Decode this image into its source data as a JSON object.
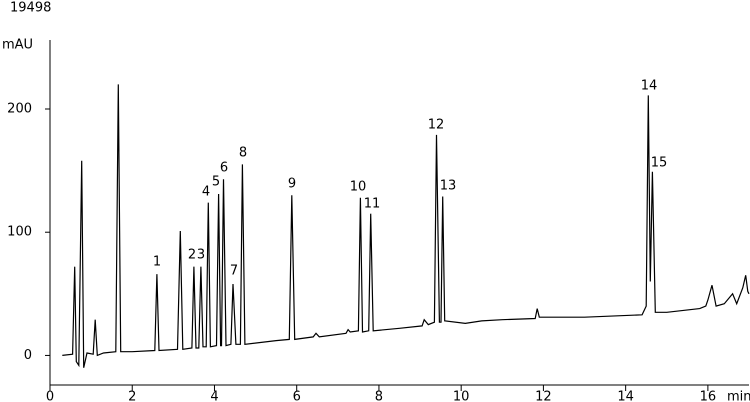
{
  "chart_data": {
    "type": "line",
    "id_label": "19498",
    "y_label": "mAU",
    "x_label": "min",
    "x": [
      0.3,
      0.55,
      0.6,
      0.64,
      0.7,
      0.77,
      0.82,
      0.9,
      1.05,
      1.1,
      1.15,
      1.3,
      1.6,
      1.66,
      1.72,
      2.0,
      2.55,
      2.6,
      2.65,
      3.1,
      3.17,
      3.23,
      3.45,
      3.5,
      3.55,
      3.62,
      3.67,
      3.72,
      3.8,
      3.85,
      3.9,
      4.05,
      4.1,
      4.15,
      4.17,
      4.22,
      4.28,
      4.4,
      4.45,
      4.52,
      4.63,
      4.68,
      4.74,
      5.5,
      5.82,
      5.88,
      5.95,
      6.4,
      6.47,
      6.55,
      7.2,
      7.25,
      7.3,
      7.5,
      7.55,
      7.6,
      7.75,
      7.8,
      7.86,
      8.5,
      9.05,
      9.1,
      9.2,
      9.35,
      9.4,
      9.47,
      9.51,
      9.55,
      9.6,
      10.1,
      10.5,
      11.0,
      11.8,
      11.85,
      11.9,
      13,
      14.4,
      14.5,
      14.55,
      14.6,
      14.65,
      14.72,
      15,
      15.8,
      15.95,
      16.0,
      16.1,
      16.2,
      16.4,
      16.6,
      16.7,
      16.85,
      16.92,
      16.97,
      17
    ],
    "series": [
      {
        "color": "#000000",
        "values": [
          0,
          1,
          72,
          -5,
          -8,
          158,
          -10,
          2,
          1,
          29,
          0,
          2,
          3,
          220,
          3,
          3,
          4,
          66,
          4,
          5,
          101,
          5,
          6,
          72,
          6,
          6,
          72,
          7,
          7,
          124,
          7,
          8,
          131,
          8,
          8,
          143,
          8,
          9,
          58,
          9,
          9,
          155,
          9,
          12,
          13,
          130,
          13,
          15,
          18,
          15,
          18,
          21,
          19,
          20,
          128,
          19,
          20,
          115,
          20,
          22,
          24,
          29,
          25,
          27,
          179,
          27,
          27,
          129,
          28,
          26,
          28,
          29,
          30,
          38,
          31,
          31,
          33,
          40,
          211,
          60,
          149,
          35,
          35,
          38,
          40,
          45,
          57,
          40,
          42,
          50,
          42,
          55,
          65,
          52,
          50
        ]
      }
    ],
    "peak_labels": [
      "1",
      "2",
      "3",
      "4",
      "5",
      "6",
      "7",
      "8",
      "9",
      "10",
      "11",
      "12",
      "13",
      "14",
      "15"
    ],
    "xlim": [
      0,
      17
    ],
    "ylim": [
      -24,
      256
    ],
    "xticks": [
      0,
      2,
      4,
      6,
      8,
      10,
      12,
      14,
      16
    ],
    "yticks": [
      0,
      100,
      200
    ]
  }
}
